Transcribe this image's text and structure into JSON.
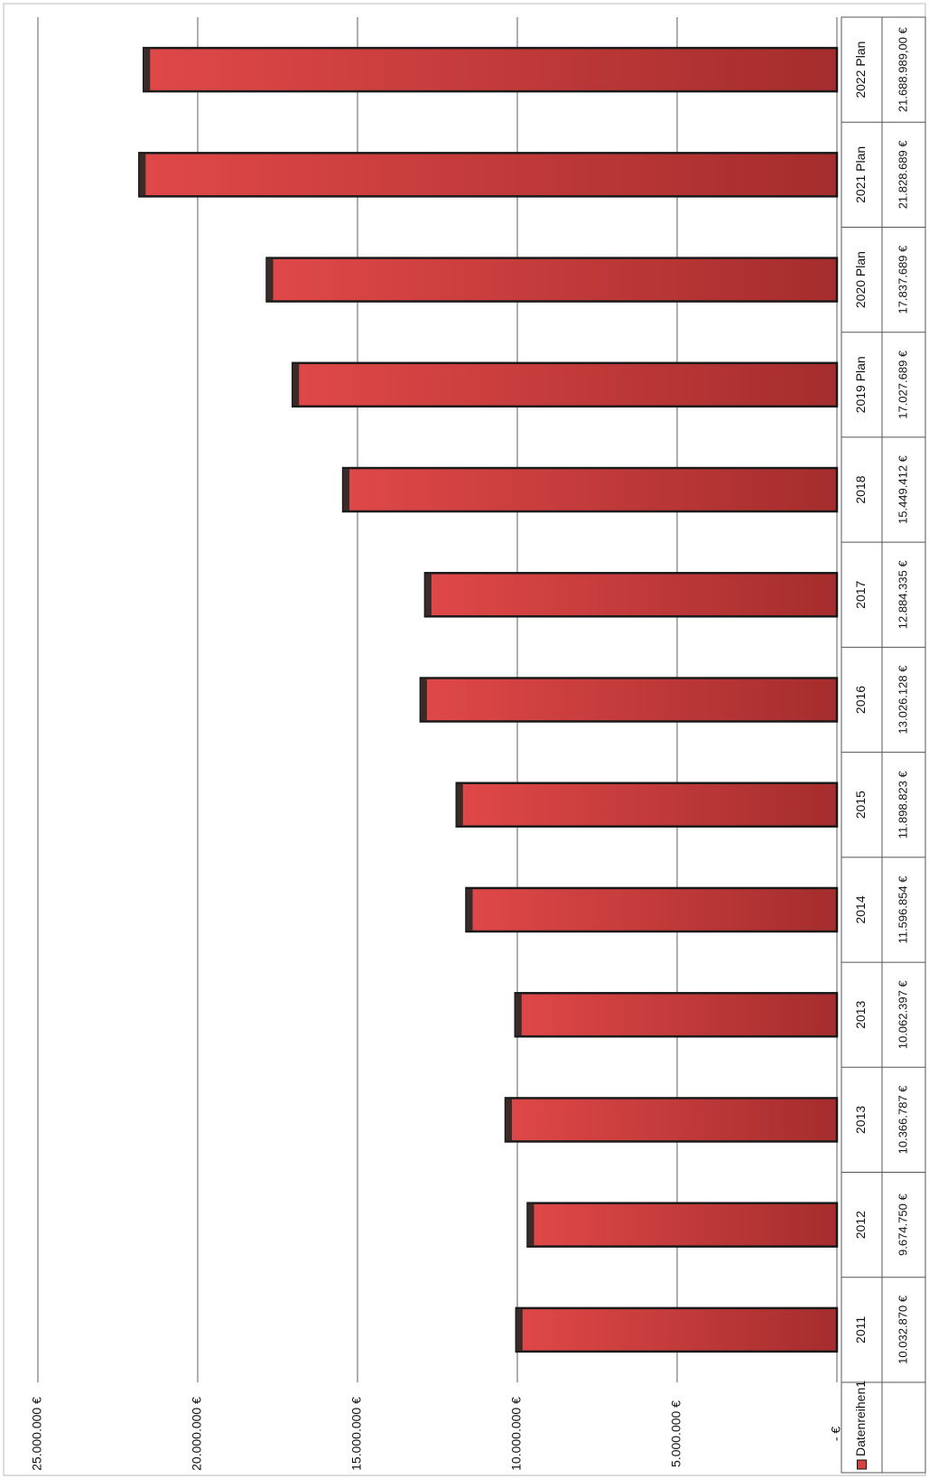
{
  "chart_data": {
    "type": "bar",
    "orientation": "horizontal",
    "categories": [
      "2011",
      "2012",
      "2013",
      "2013",
      "2014",
      "2015",
      "2016",
      "2017",
      "2018",
      "2019 Plan",
      "2020 Plan",
      "2021 Plan",
      "2022 Plan"
    ],
    "series": [
      {
        "name": "Datenreihen1",
        "color": "#d94040",
        "values": [
          10032870,
          9674750,
          10366787,
          10062397,
          11596854,
          11898823,
          13026128,
          12884335,
          15449412,
          17027689,
          17837689,
          21828689,
          21688989
        ],
        "value_labels": [
          "10.032.870 €",
          "9.674.750 €",
          "10.366.787 €",
          "10.062.397 €",
          "11.596.854 €",
          "11.898.823 €",
          "13.026.128 €",
          "12.884.335 €",
          "15.449.412 €",
          "17.027.689 €",
          "17.837.689 €",
          "21.828.689 €",
          "21.688.989,00 €"
        ]
      }
    ],
    "ylim": [
      0,
      25000000
    ],
    "yticks": [
      {
        "value": 0,
        "label": "- €"
      },
      {
        "value": 5000000,
        "label": "5.000.000 €"
      },
      {
        "value": 10000000,
        "label": "10.000.000 €"
      },
      {
        "value": 15000000,
        "label": "15.000.000 €"
      },
      {
        "value": 20000000,
        "label": "20.000.000 €"
      },
      {
        "value": 25000000,
        "label": "25.000.000 €"
      }
    ],
    "grid": true
  }
}
